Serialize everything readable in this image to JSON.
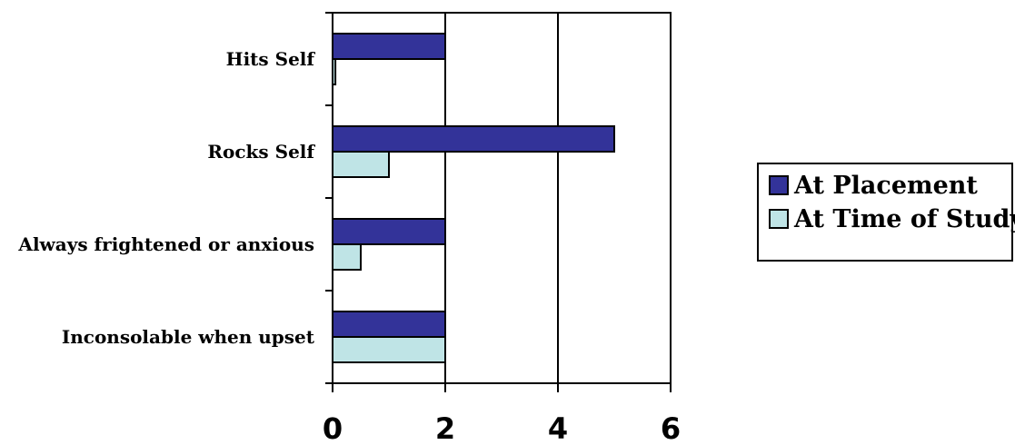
{
  "chart_data": {
    "type": "bar",
    "orientation": "horizontal",
    "title": "",
    "xlabel": "",
    "ylabel": "",
    "categories": [
      "Hits Self",
      "Rocks Self",
      "Always frightened or anxious",
      "Inconsolable when upset"
    ],
    "series": [
      {
        "name": "At Placement",
        "values": [
          2,
          5,
          2,
          2
        ],
        "color": "#333399"
      },
      {
        "name": "At Time of Study",
        "values": [
          0.05,
          1,
          0.5,
          2
        ],
        "color": "#bfe4e6"
      }
    ],
    "xlim": [
      0,
      6
    ],
    "x_ticks": [
      "0",
      "2",
      "4",
      "6"
    ],
    "grid": "vertical",
    "legend": "right"
  }
}
